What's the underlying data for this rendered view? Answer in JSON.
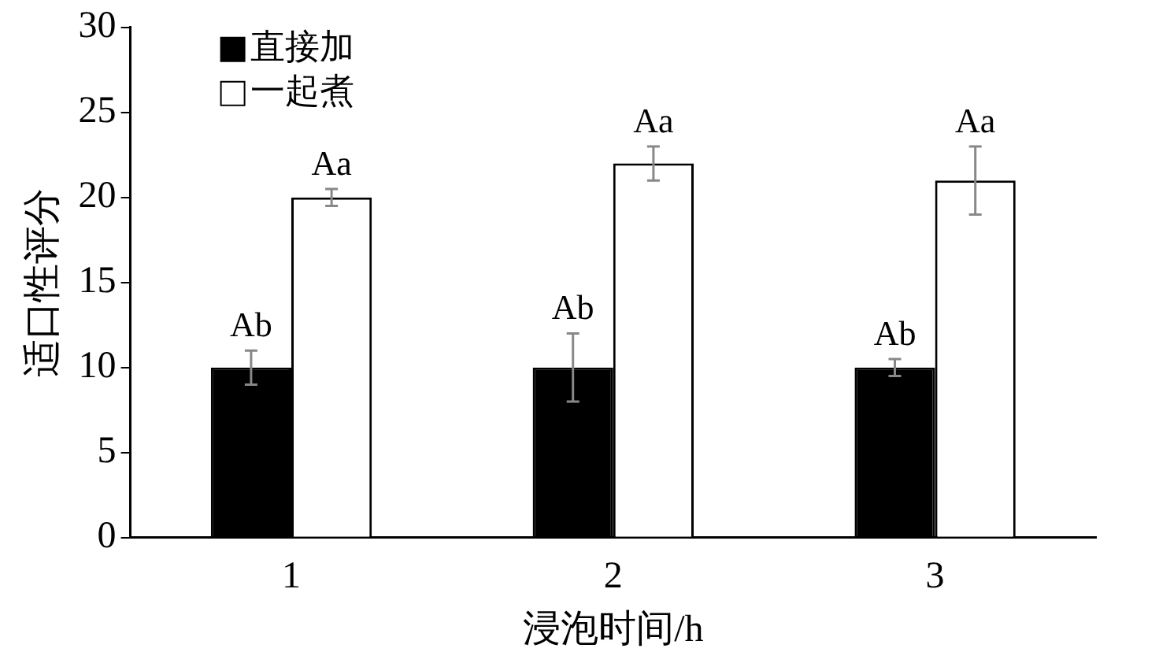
{
  "chart_data": {
    "type": "bar",
    "xlabel": "浸泡时间/h",
    "ylabel": "适口性评分",
    "categories": [
      "1",
      "2",
      "3"
    ],
    "series": [
      {
        "name": "直接加",
        "color": "#000000",
        "values": [
          10,
          10,
          10
        ],
        "errors": [
          1,
          2,
          0.5
        ],
        "value_labels": [
          "Ab",
          "Ab",
          "Ab"
        ]
      },
      {
        "name": "一起煮",
        "color": "#ffffff",
        "values": [
          20,
          22,
          21
        ],
        "errors": [
          0.5,
          1,
          2
        ],
        "value_labels": [
          "Aa",
          "Aa",
          "Aa"
        ]
      }
    ],
    "ylim": [
      0,
      30
    ],
    "yticks": [
      0,
      5,
      10,
      15,
      20,
      25,
      30
    ],
    "grid": false,
    "legend": "top left"
  }
}
